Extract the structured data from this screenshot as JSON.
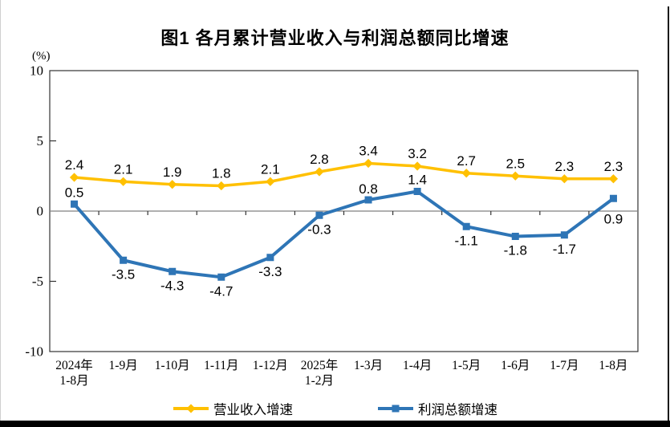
{
  "chart_data": {
    "type": "line",
    "title": "图1  各月累计营业收入与利润总额同比增速",
    "unit_label": "(%)",
    "categories": [
      [
        "2024年",
        "1-8月"
      ],
      [
        "1-9月"
      ],
      [
        "1-10月"
      ],
      [
        "1-11月"
      ],
      [
        "1-12月"
      ],
      [
        "2025年",
        "1-2月"
      ],
      [
        "1-3月"
      ],
      [
        "1-4月"
      ],
      [
        "1-5月"
      ],
      [
        "1-6月"
      ],
      [
        "1-7月"
      ],
      [
        "1-8月"
      ]
    ],
    "ylim": [
      -10,
      10
    ],
    "yticks": [
      10,
      5,
      0,
      -5,
      -10
    ],
    "grid": "zero-line-only",
    "legend_position": "bottom",
    "axis_color": "#333333",
    "zero_line_color": "#808080",
    "series": [
      {
        "name": "营业收入增速",
        "color": "#FFC000",
        "marker": "diamond",
        "values": [
          2.4,
          2.1,
          1.9,
          1.8,
          2.1,
          2.8,
          3.4,
          3.2,
          2.7,
          2.5,
          2.3,
          2.3
        ],
        "label_dy": [
          -10,
          -10,
          -10,
          -10,
          -10,
          -10,
          -10,
          -10,
          -10,
          -10,
          -10,
          -10
        ]
      },
      {
        "name": "利润总额增速",
        "color": "#2E75B6",
        "marker": "square",
        "values": [
          0.5,
          -3.5,
          -4.3,
          -4.7,
          -3.3,
          -0.3,
          0.8,
          1.4,
          -1.1,
          -1.8,
          -1.7,
          0.9
        ],
        "label_dy": [
          -9,
          23,
          23,
          23,
          23,
          23,
          -8,
          -9,
          23,
          23,
          23,
          31
        ]
      }
    ]
  }
}
